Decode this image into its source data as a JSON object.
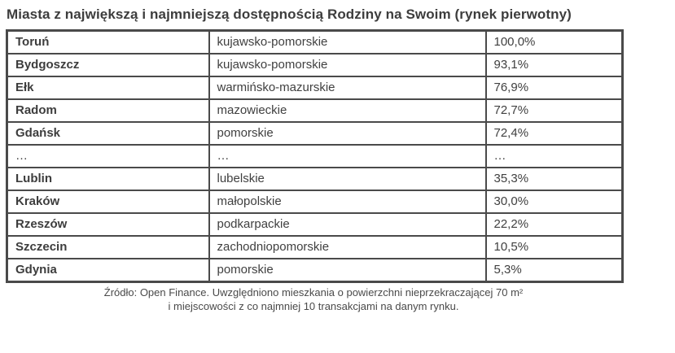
{
  "title": "Miasta z największą i najmniejszą dostępnością Rodziny na Swoim (rynek pierwotny)",
  "chart_data": {
    "type": "table",
    "rows": [
      {
        "city": "Toruń",
        "region": "kujawsko-pomorskie",
        "value": "100,0%"
      },
      {
        "city": "Bydgoszcz",
        "region": "kujawsko-pomorskie",
        "value": "93,1%"
      },
      {
        "city": "Ełk",
        "region": "warmińsko-mazurskie",
        "value": "76,9%"
      },
      {
        "city": "Radom",
        "region": "mazowieckie",
        "value": "72,7%"
      },
      {
        "city": "Gdańsk",
        "region": "pomorskie",
        "value": "72,4%"
      },
      {
        "city": "…",
        "region": "…",
        "value": "…"
      },
      {
        "city": "Lublin",
        "region": "lubelskie",
        "value": "35,3%"
      },
      {
        "city": "Kraków",
        "region": "małopolskie",
        "value": "30,0%"
      },
      {
        "city": "Rzeszów",
        "region": "podkarpackie",
        "value": "22,2%"
      },
      {
        "city": "Szczecin",
        "region": "zachodniopomorskie",
        "value": "10,5%"
      },
      {
        "city": "Gdynia",
        "region": "pomorskie",
        "value": "5,3%"
      }
    ]
  },
  "footer": {
    "line1": "Źródło: Open Finance. Uwzględniono mieszkania o powierzchni nieprzekraczającej 70 m²",
    "line2": "i miejscowości z co najmniej 10 transakcjami na danym rynku."
  },
  "colors": {
    "border": "#4a4a4a",
    "text": "#404040",
    "background": "#ffffff"
  }
}
